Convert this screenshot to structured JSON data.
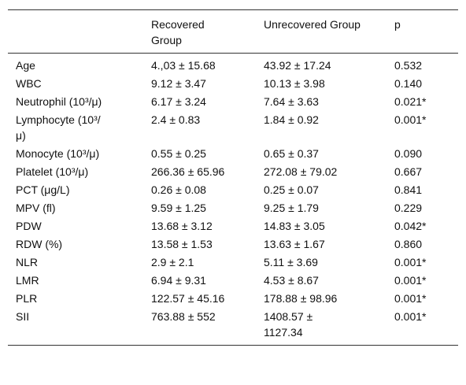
{
  "table": {
    "header": [
      "",
      "Recovered Group",
      "Unrecovered Group",
      "p"
    ],
    "rows": [
      [
        "Age",
        "4.,03 ± 15.68",
        "43.92 ± 17.24",
        "0.532"
      ],
      [
        "WBC",
        "9.12 ± 3.47",
        "10.13 ± 3.98",
        "0.140"
      ],
      [
        "Neutrophil (10³/μ)",
        "6.17 ± 3.24",
        "7.64 ± 3.63",
        "0.021*"
      ],
      [
        "Lymphocyte (10³/μ)",
        "2.4 ± 0.83",
        "1.84 ± 0.92",
        "0.001*"
      ],
      [
        "Monocyte (10³/μ)",
        "0.55 ± 0.25",
        "0.65 ± 0.37",
        "0.090"
      ],
      [
        "Platelet (10³/μ)",
        "266.36 ± 65.96",
        "272.08 ± 79.02",
        "0.667"
      ],
      [
        "PCT (μg/L)",
        "0.26 ± 0.08",
        "0.25 ± 0.07",
        "0.841"
      ],
      [
        "MPV (fl)",
        "9.59 ± 1.25",
        "9.25 ± 1.79",
        "0.229"
      ],
      [
        "PDW",
        "13.68 ± 3.12",
        "14.83 ± 3.05",
        "0.042*"
      ],
      [
        "RDW (%)",
        "13.58 ± 1.53",
        "13.63 ± 1.67",
        "0.860"
      ],
      [
        "NLR",
        "2.9 ± 2.1",
        "5.11 ± 3.69",
        "0.001*"
      ],
      [
        "LMR",
        "6.94 ± 9.31",
        "4.53 ± 8.67",
        "0.001*"
      ],
      [
        "PLR",
        "122.57 ± 45.16",
        "178.88 ± 98.96",
        "0.001*"
      ],
      [
        "SII",
        "763.88 ± 552",
        "1408.57 ± 1127.34",
        "0.001*"
      ]
    ]
  }
}
